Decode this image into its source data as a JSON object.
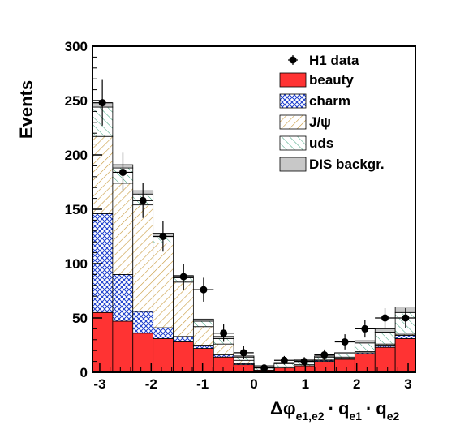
{
  "chart_data": {
    "type": "bar",
    "stacked": true,
    "histogram": true,
    "xlabel_parts": {
      "main": "Δφ",
      "sub1": "e1,e2",
      "dot": "·",
      "q": "q",
      "sub2": "e1",
      "sub3": "e2"
    },
    "ylabel": "Events",
    "xlim": [
      -3.14159,
      3.14159
    ],
    "ylim": [
      0,
      300
    ],
    "x_ticks": [
      -3,
      -2,
      -1,
      0,
      1,
      2,
      3
    ],
    "x_tick_labels": [
      "-3",
      "-2",
      "-1",
      "0",
      "1",
      "2",
      "3"
    ],
    "y_ticks": [
      0,
      50,
      100,
      150,
      200,
      250,
      300
    ],
    "y_tick_labels": [
      "0",
      "50",
      "100",
      "150",
      "200",
      "250",
      "300"
    ],
    "bin_edges": [
      -3.14159,
      -2.74889,
      -2.35619,
      -1.9635,
      -1.5708,
      -1.1781,
      -0.7854,
      -0.3927,
      0.0,
      0.3927,
      0.7854,
      1.1781,
      1.5708,
      1.9635,
      2.35619,
      2.74889,
      3.14159
    ],
    "series": [
      {
        "name": "beauty",
        "color": "#ff3333",
        "values": [
          55,
          47,
          36,
          31,
          28,
          22,
          14,
          7,
          2,
          4,
          6,
          10,
          12,
          17,
          23,
          31
        ]
      },
      {
        "name": "charm",
        "color": "#1a3ccc",
        "values": [
          91,
          43,
          20,
          10,
          5,
          3,
          2,
          1,
          0,
          0,
          0,
          1,
          1,
          1,
          2,
          3
        ]
      },
      {
        "name": "J/ψ",
        "color": "#c89a3c",
        "values": [
          71,
          84,
          98,
          78,
          50,
          17,
          10,
          3,
          0,
          1,
          1,
          1,
          1,
          1,
          1,
          1
        ]
      },
      {
        "name": "uds",
        "color": "#3aa07a",
        "values": [
          27,
          14,
          10,
          6,
          4,
          5,
          5,
          3,
          3,
          3,
          4,
          2,
          3,
          8,
          11,
          20
        ]
      },
      {
        "name": "DIS backgr.",
        "color": "#c8c8c8",
        "values": [
          4,
          3,
          3,
          3,
          2,
          2,
          2,
          1,
          1,
          1,
          1,
          1,
          1,
          2,
          3,
          5
        ]
      }
    ],
    "data_points": {
      "name": "H1 data",
      "x": [
        -2.95,
        -2.55,
        -2.16,
        -1.77,
        -1.37,
        -0.98,
        -0.59,
        -0.2,
        0.2,
        0.59,
        0.98,
        1.37,
        1.77,
        2.16,
        2.55,
        2.95
      ],
      "y": [
        248,
        184,
        158,
        125,
        88,
        76,
        36,
        18,
        4,
        11,
        10,
        16,
        28,
        40,
        50,
        50
      ],
      "yerr": [
        21,
        18,
        16,
        14,
        12,
        11,
        8,
        6,
        3,
        4,
        4,
        5,
        7,
        8,
        9,
        9
      ],
      "xerr": [
        0.196,
        0.196,
        0.196,
        0.196,
        0.196,
        0.196,
        0.196,
        0.196,
        0.196,
        0.196,
        0.196,
        0.196,
        0.196,
        0.196,
        0.196,
        0.196
      ]
    },
    "legend": {
      "position": "top-right",
      "entries": [
        "H1 data",
        "beauty",
        "charm",
        "J/ψ",
        "uds",
        "DIS backgr."
      ]
    }
  }
}
